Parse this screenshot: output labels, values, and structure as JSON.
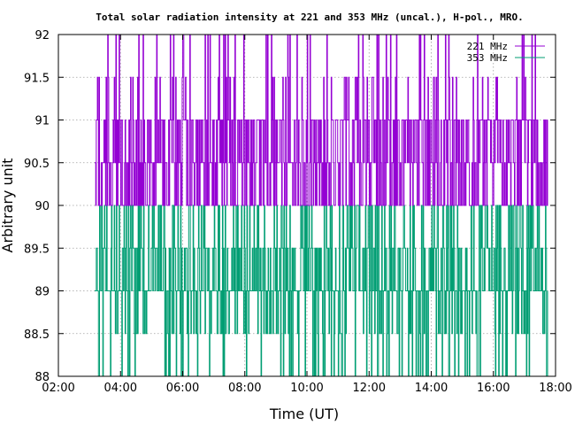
{
  "chart_data": {
    "type": "line",
    "title": "Total solar radiation intensity at 221 and 353 MHz (uncal.), H-pol., MRO.",
    "xlabel": "Time (UT)",
    "ylabel": "Arbitrary unit",
    "xlim": [
      "02:00",
      "18:00"
    ],
    "ylim": [
      88,
      92
    ],
    "xticks": [
      "02:00",
      "04:00",
      "06:00",
      "08:00",
      "10:00",
      "12:00",
      "14:00",
      "16:00",
      "18:00"
    ],
    "yticks": [
      "88",
      "88.5",
      "89",
      "89.5",
      "90",
      "90.5",
      "91",
      "91.5",
      "92"
    ],
    "grid": true,
    "legend_position": "top-right",
    "data_time_range": [
      "03:10",
      "17:45"
    ],
    "series": [
      {
        "name": "221 MHz",
        "color": "#9400d3",
        "levels": [
          90,
          90.5,
          91,
          91.5,
          92
        ],
        "note_levels": "signal dithers between quantized levels 90 and 92, mostly 90-91"
      },
      {
        "name": "353 MHz",
        "color": "#009e73",
        "levels": [
          88,
          88.5,
          89,
          89.5,
          90
        ],
        "note_levels": "signal dithers between quantized levels 88 and 90, mostly 89-90"
      }
    ]
  }
}
